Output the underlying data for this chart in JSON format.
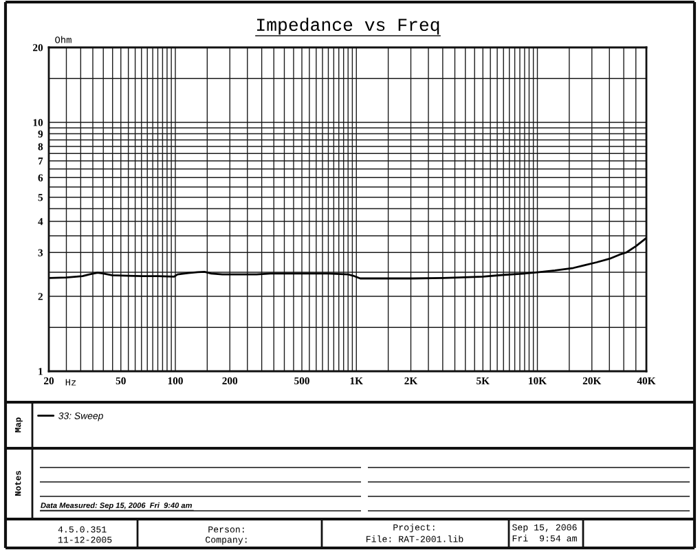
{
  "chart_data": {
    "type": "line",
    "title": "Impedance vs Freq",
    "xlabel": "Hz",
    "ylabel": "Ohm",
    "log": "xy",
    "xlim": [
      20,
      40000
    ],
    "ylim": [
      1,
      20
    ],
    "xticks": [
      20,
      {
        "value": 25,
        "label": null
      },
      {
        "value": 30,
        "label": null
      },
      {
        "value": 35,
        "label": null
      },
      {
        "value": 40,
        "label": null
      },
      {
        "value": 45,
        "label": null
      },
      50,
      {
        "value": 55,
        "label": null
      },
      {
        "value": 60,
        "label": null
      },
      {
        "value": 65,
        "label": null
      },
      {
        "value": 70,
        "label": null
      },
      {
        "value": 75,
        "label": null
      },
      {
        "value": 80,
        "label": null
      },
      {
        "value": 85,
        "label": null
      },
      {
        "value": 90,
        "label": null
      },
      {
        "value": 95,
        "label": null
      },
      100,
      {
        "value": 150,
        "label": null
      },
      200,
      {
        "value": 250,
        "label": null
      },
      {
        "value": 300,
        "label": null
      },
      {
        "value": 350,
        "label": null
      },
      {
        "value": 400,
        "label": null
      },
      {
        "value": 450,
        "label": null
      },
      500,
      {
        "value": 550,
        "label": null
      },
      {
        "value": 600,
        "label": null
      },
      {
        "value": 650,
        "label": null
      },
      {
        "value": 700,
        "label": null
      },
      {
        "value": 750,
        "label": null
      },
      {
        "value": 800,
        "label": null
      },
      {
        "value": 850,
        "label": null
      },
      {
        "value": 900,
        "label": null
      },
      {
        "value": 950,
        "label": null
      },
      {
        "value": 1000,
        "label": "1K"
      },
      {
        "value": 1500,
        "label": null
      },
      {
        "value": 2000,
        "label": "2K"
      },
      {
        "value": 2500,
        "label": null
      },
      {
        "value": 3000,
        "label": null
      },
      {
        "value": 3500,
        "label": null
      },
      {
        "value": 4000,
        "label": null
      },
      {
        "value": 4500,
        "label": null
      },
      {
        "value": 5000,
        "label": "5K"
      },
      {
        "value": 5500,
        "label": null
      },
      {
        "value": 6000,
        "label": null
      },
      {
        "value": 6500,
        "label": null
      },
      {
        "value": 7000,
        "label": null
      },
      {
        "value": 7500,
        "label": null
      },
      {
        "value": 8000,
        "label": null
      },
      {
        "value": 8500,
        "label": null
      },
      {
        "value": 9000,
        "label": null
      },
      {
        "value": 9500,
        "label": null
      },
      {
        "value": 10000,
        "label": "10K"
      },
      {
        "value": 15000,
        "label": null
      },
      {
        "value": 20000,
        "label": "20K"
      },
      {
        "value": 25000,
        "label": null
      },
      {
        "value": 30000,
        "label": null
      },
      {
        "value": 35000,
        "label": null
      },
      {
        "value": 40000,
        "label": "40K"
      }
    ],
    "yticks": [
      1,
      {
        "value": 1.5,
        "label": null
      },
      2,
      {
        "value": 2.5,
        "label": null
      },
      3,
      {
        "value": 3.5,
        "label": null
      },
      4,
      {
        "value": 4.5,
        "label": null
      },
      5,
      {
        "value": 5.5,
        "label": null
      },
      6,
      {
        "value": 6.5,
        "label": null
      },
      7,
      {
        "value": 7.5,
        "label": null
      },
      8,
      {
        "value": 8.5,
        "label": null
      },
      9,
      {
        "value": 9.5,
        "label": null
      },
      10,
      {
        "value": 15,
        "label": null
      },
      20
    ],
    "grid": true,
    "legend": "bottom",
    "line_style": "solid",
    "series": [
      {
        "name": "33: Sweep",
        "color": "#000000",
        "x": [
          20,
          25,
          30.7,
          33.5,
          37.2,
          40,
          44.8,
          55,
          65.8,
          80,
          98.4,
          102.8,
          118,
          132.6,
          145,
          158,
          182,
          230,
          281,
          335,
          500,
          700,
          900,
          960,
          1050,
          1112,
          1500,
          2050,
          3000,
          3690,
          5000,
          6580,
          8000,
          10190,
          12500,
          15800,
          18000,
          21270,
          25000,
          28400,
          31000,
          35000,
          40000
        ],
        "values": [
          2.37,
          2.38,
          2.41,
          2.45,
          2.49,
          2.47,
          2.43,
          2.42,
          2.41,
          2.41,
          2.4,
          2.45,
          2.48,
          2.5,
          2.51,
          2.47,
          2.45,
          2.45,
          2.45,
          2.47,
          2.47,
          2.47,
          2.45,
          2.42,
          2.36,
          2.36,
          2.36,
          2.36,
          2.37,
          2.38,
          2.4,
          2.44,
          2.46,
          2.5,
          2.54,
          2.6,
          2.66,
          2.74,
          2.83,
          2.94,
          3.0,
          3.18,
          3.43
        ]
      }
    ],
    "annotations": [
      "Map",
      "Notes",
      "Data Measured: Sep 15, 2006  Fri  9:40 am",
      "4.5.0.351",
      "11-12-2005",
      "Person:",
      "Company:",
      "Project:",
      "File: RAT-2001.lib",
      "Sep 15, 2006",
      "Fri  9:54 am"
    ]
  }
}
